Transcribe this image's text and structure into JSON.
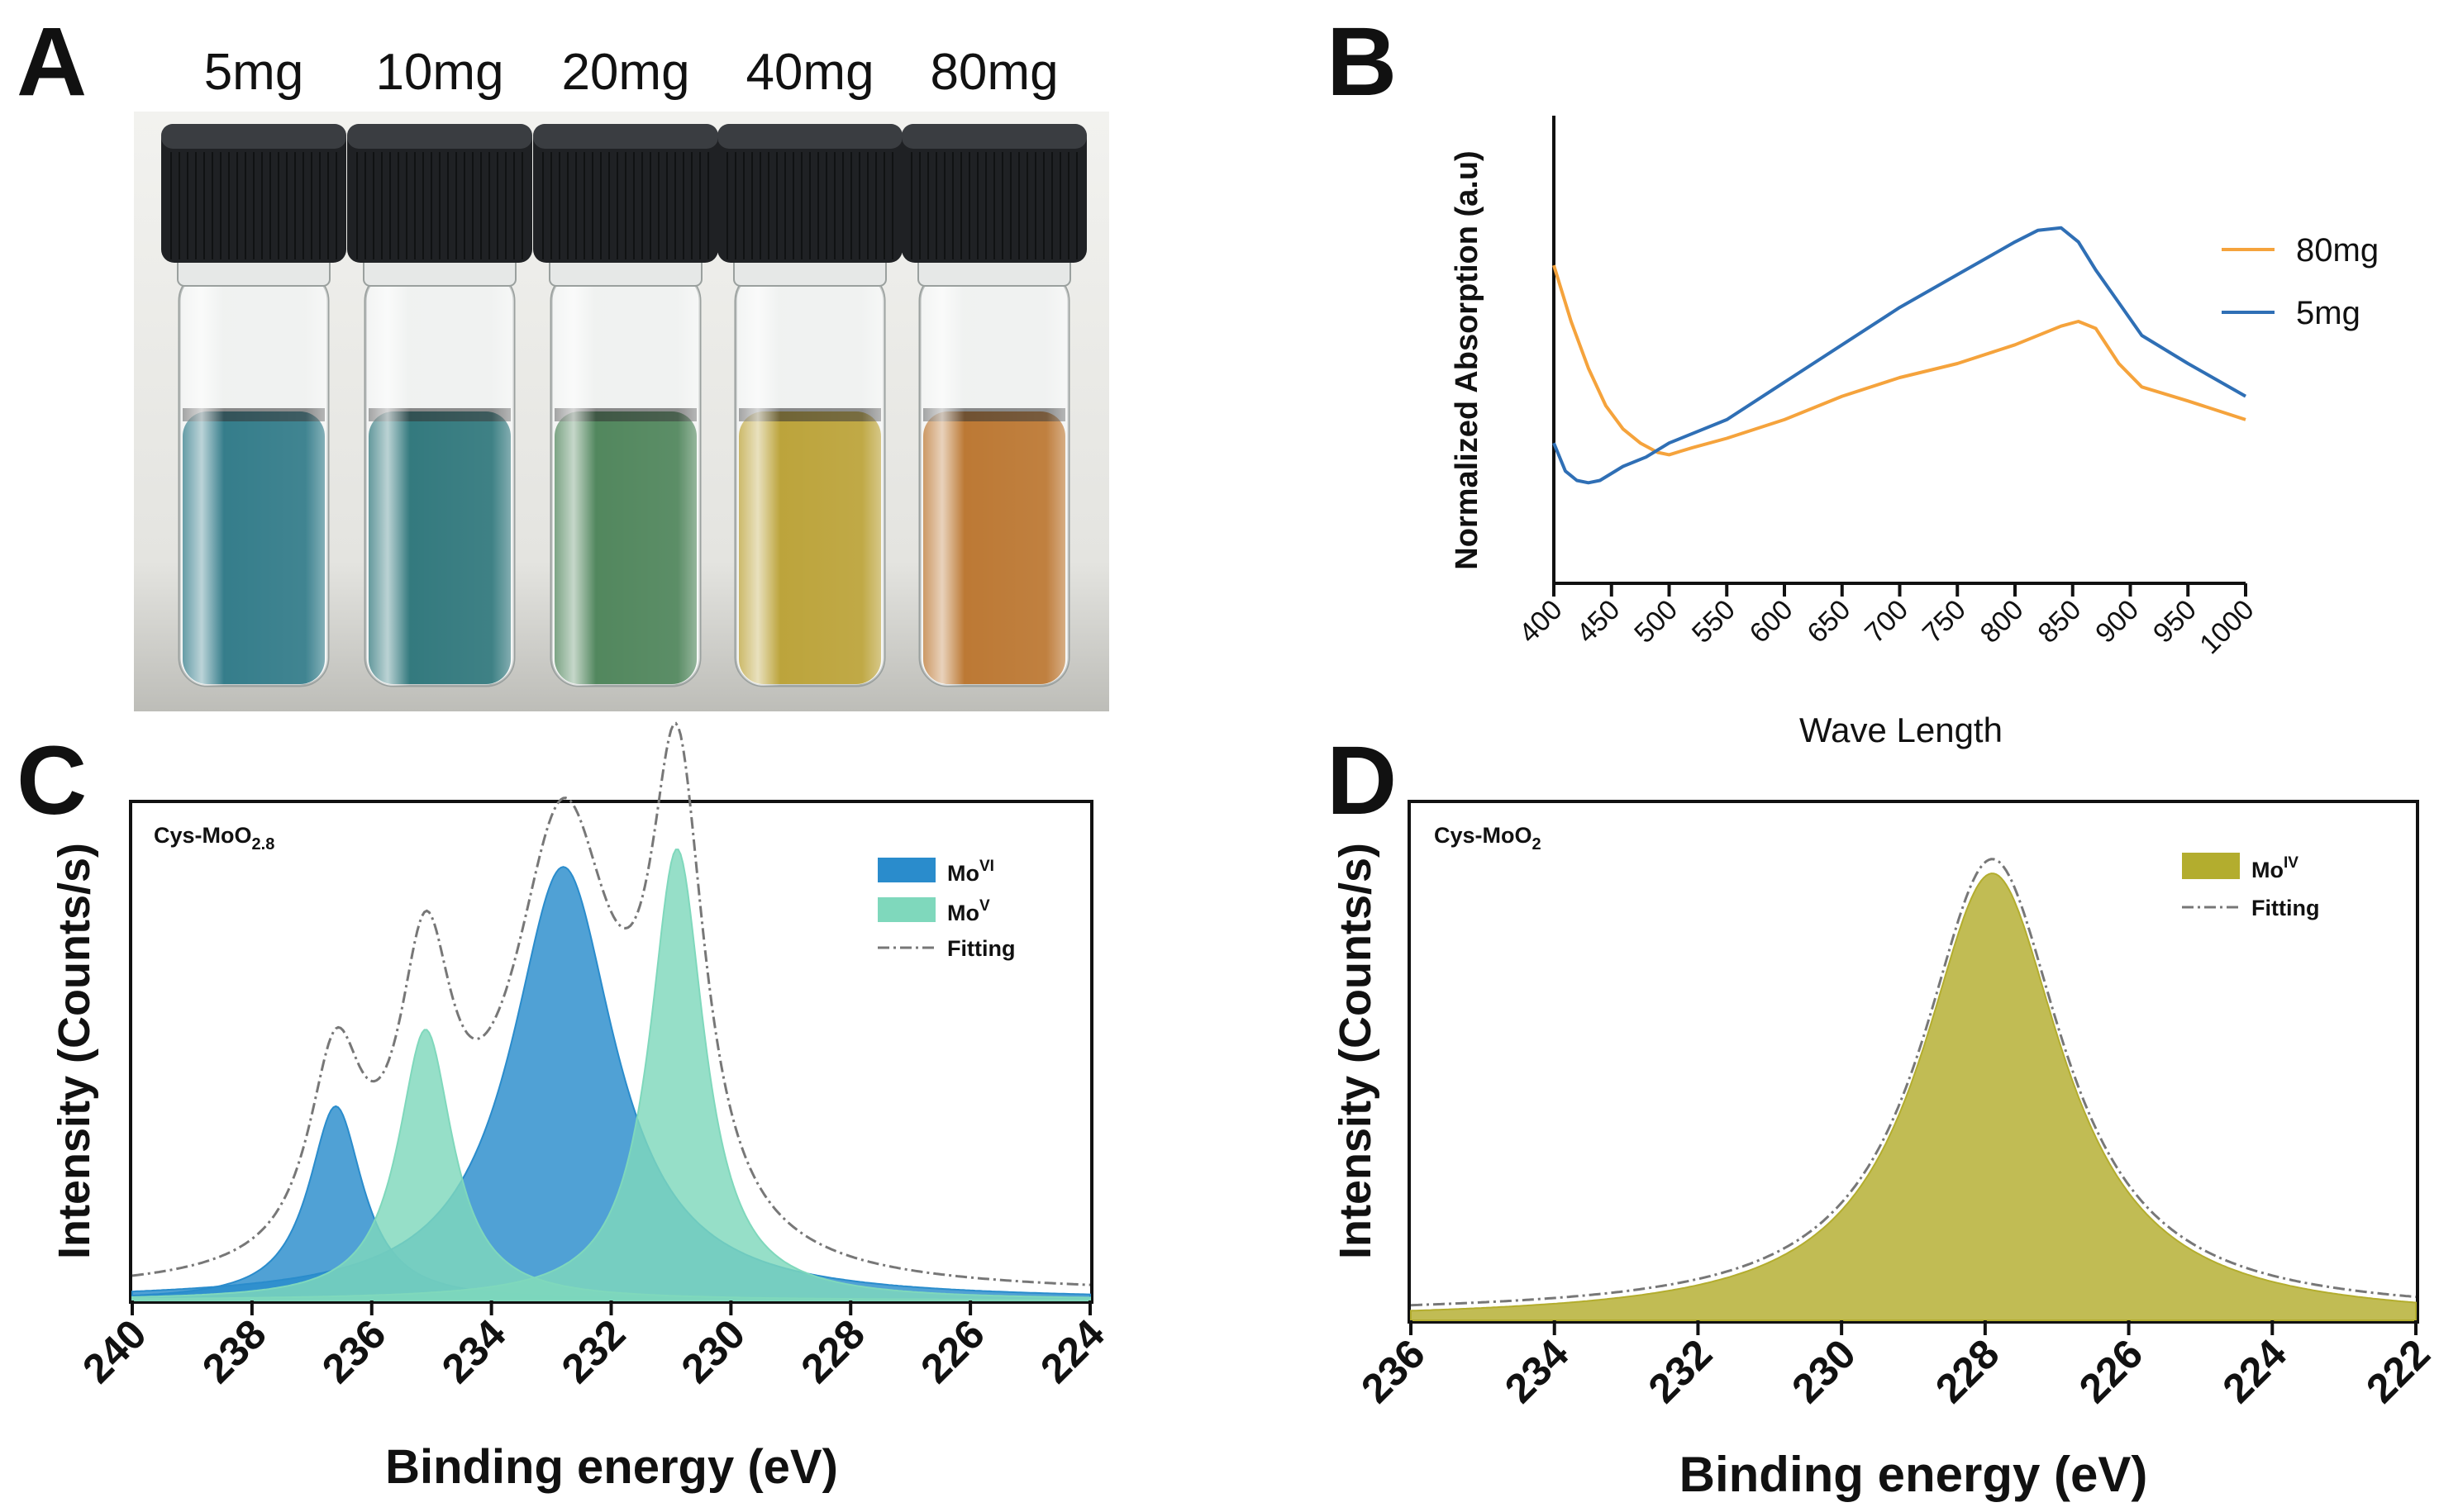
{
  "panels": {
    "A": {
      "letter": "A",
      "vial_labels": [
        "5mg",
        "10mg",
        "20mg",
        "40mg",
        "80mg"
      ],
      "liquid_colors": [
        "#1f6f7e",
        "#1d6b70",
        "#3f7a4c",
        "#b59a26",
        "#b56a1e"
      ],
      "cap_color": "#1f2124"
    },
    "B": {
      "letter": "B"
    },
    "C": {
      "letter": "C"
    },
    "D": {
      "letter": "D"
    }
  },
  "chart_data": [
    {
      "panel": "B",
      "type": "line",
      "title": "",
      "xlabel": "Wave Length",
      "ylabel": "Normalized Absorption (a.u)",
      "xlim": [
        400,
        1000
      ],
      "ylim": [
        0,
        1
      ],
      "xticks": [
        "400",
        "450",
        "500",
        "550",
        "600",
        "650",
        "700",
        "750",
        "800",
        "850",
        "900",
        "950",
        "1000"
      ],
      "legend_position": "top-right",
      "series": [
        {
          "name": "80mg",
          "color": "#f5a33c",
          "x": [
            400,
            415,
            430,
            445,
            460,
            475,
            490,
            500,
            520,
            550,
            600,
            650,
            700,
            750,
            800,
            840,
            855,
            870,
            890,
            910,
            950,
            1000
          ],
          "y": [
            0.68,
            0.56,
            0.46,
            0.38,
            0.33,
            0.3,
            0.28,
            0.275,
            0.29,
            0.31,
            0.35,
            0.4,
            0.44,
            0.47,
            0.51,
            0.55,
            0.56,
            0.545,
            0.47,
            0.42,
            0.39,
            0.35
          ]
        },
        {
          "name": "5mg",
          "color": "#2f6fb5",
          "x": [
            400,
            410,
            420,
            430,
            440,
            450,
            460,
            480,
            500,
            550,
            600,
            650,
            700,
            750,
            800,
            820,
            840,
            855,
            870,
            890,
            910,
            950,
            1000
          ],
          "y": [
            0.3,
            0.24,
            0.22,
            0.215,
            0.22,
            0.235,
            0.25,
            0.27,
            0.3,
            0.35,
            0.43,
            0.51,
            0.59,
            0.66,
            0.73,
            0.755,
            0.76,
            0.73,
            0.67,
            0.6,
            0.53,
            0.47,
            0.4
          ]
        }
      ]
    },
    {
      "panel": "C",
      "type": "area",
      "title": "Cys-MoO",
      "title_subscript": "2.8",
      "xlabel": "Binding energy (eV)",
      "ylabel": "Intensity (Counts/s)",
      "xlim": [
        240,
        224
      ],
      "ylim": [
        0,
        1.05
      ],
      "xticks": [
        "240",
        "238",
        "236",
        "234",
        "232",
        "230",
        "228",
        "226",
        "224"
      ],
      "legend_position": "top-right",
      "series": [
        {
          "name": "Mo",
          "name_sup": "VI",
          "color": "#2a8ccc",
          "peaks": [
            {
              "center": 236.6,
              "height": 0.43,
              "fwhm": 1.1
            },
            {
              "center": 232.8,
              "height": 0.96,
              "fwhm": 2.1
            }
          ]
        },
        {
          "name": "Mo",
          "name_sup": "V",
          "color": "#7fd8bc",
          "peaks": [
            {
              "center": 235.1,
              "height": 0.6,
              "fwhm": 1.1
            },
            {
              "center": 230.9,
              "height": 1.0,
              "fwhm": 1.1
            }
          ]
        },
        {
          "name": "Fitting",
          "color": "#777777",
          "style": "dash-dot"
        }
      ]
    },
    {
      "panel": "D",
      "type": "area",
      "title": "Cys-MoO",
      "title_subscript": "2",
      "xlabel": "Binding energy (eV)",
      "ylabel": "Intensity (Counts/s)",
      "xlim": [
        236,
        222
      ],
      "ylim": [
        0,
        1.05
      ],
      "xticks": [
        "236",
        "234",
        "232",
        "230",
        "228",
        "226",
        "224",
        "222"
      ],
      "legend_position": "top-right",
      "series": [
        {
          "name": "Mo",
          "name_sup": "IV",
          "color": "#b3ad2e",
          "peaks": [
            {
              "center": 227.9,
              "height": 1.0,
              "fwhm": 2.4
            }
          ]
        },
        {
          "name": "Fitting",
          "color": "#777777",
          "style": "dash-dot"
        }
      ]
    }
  ]
}
